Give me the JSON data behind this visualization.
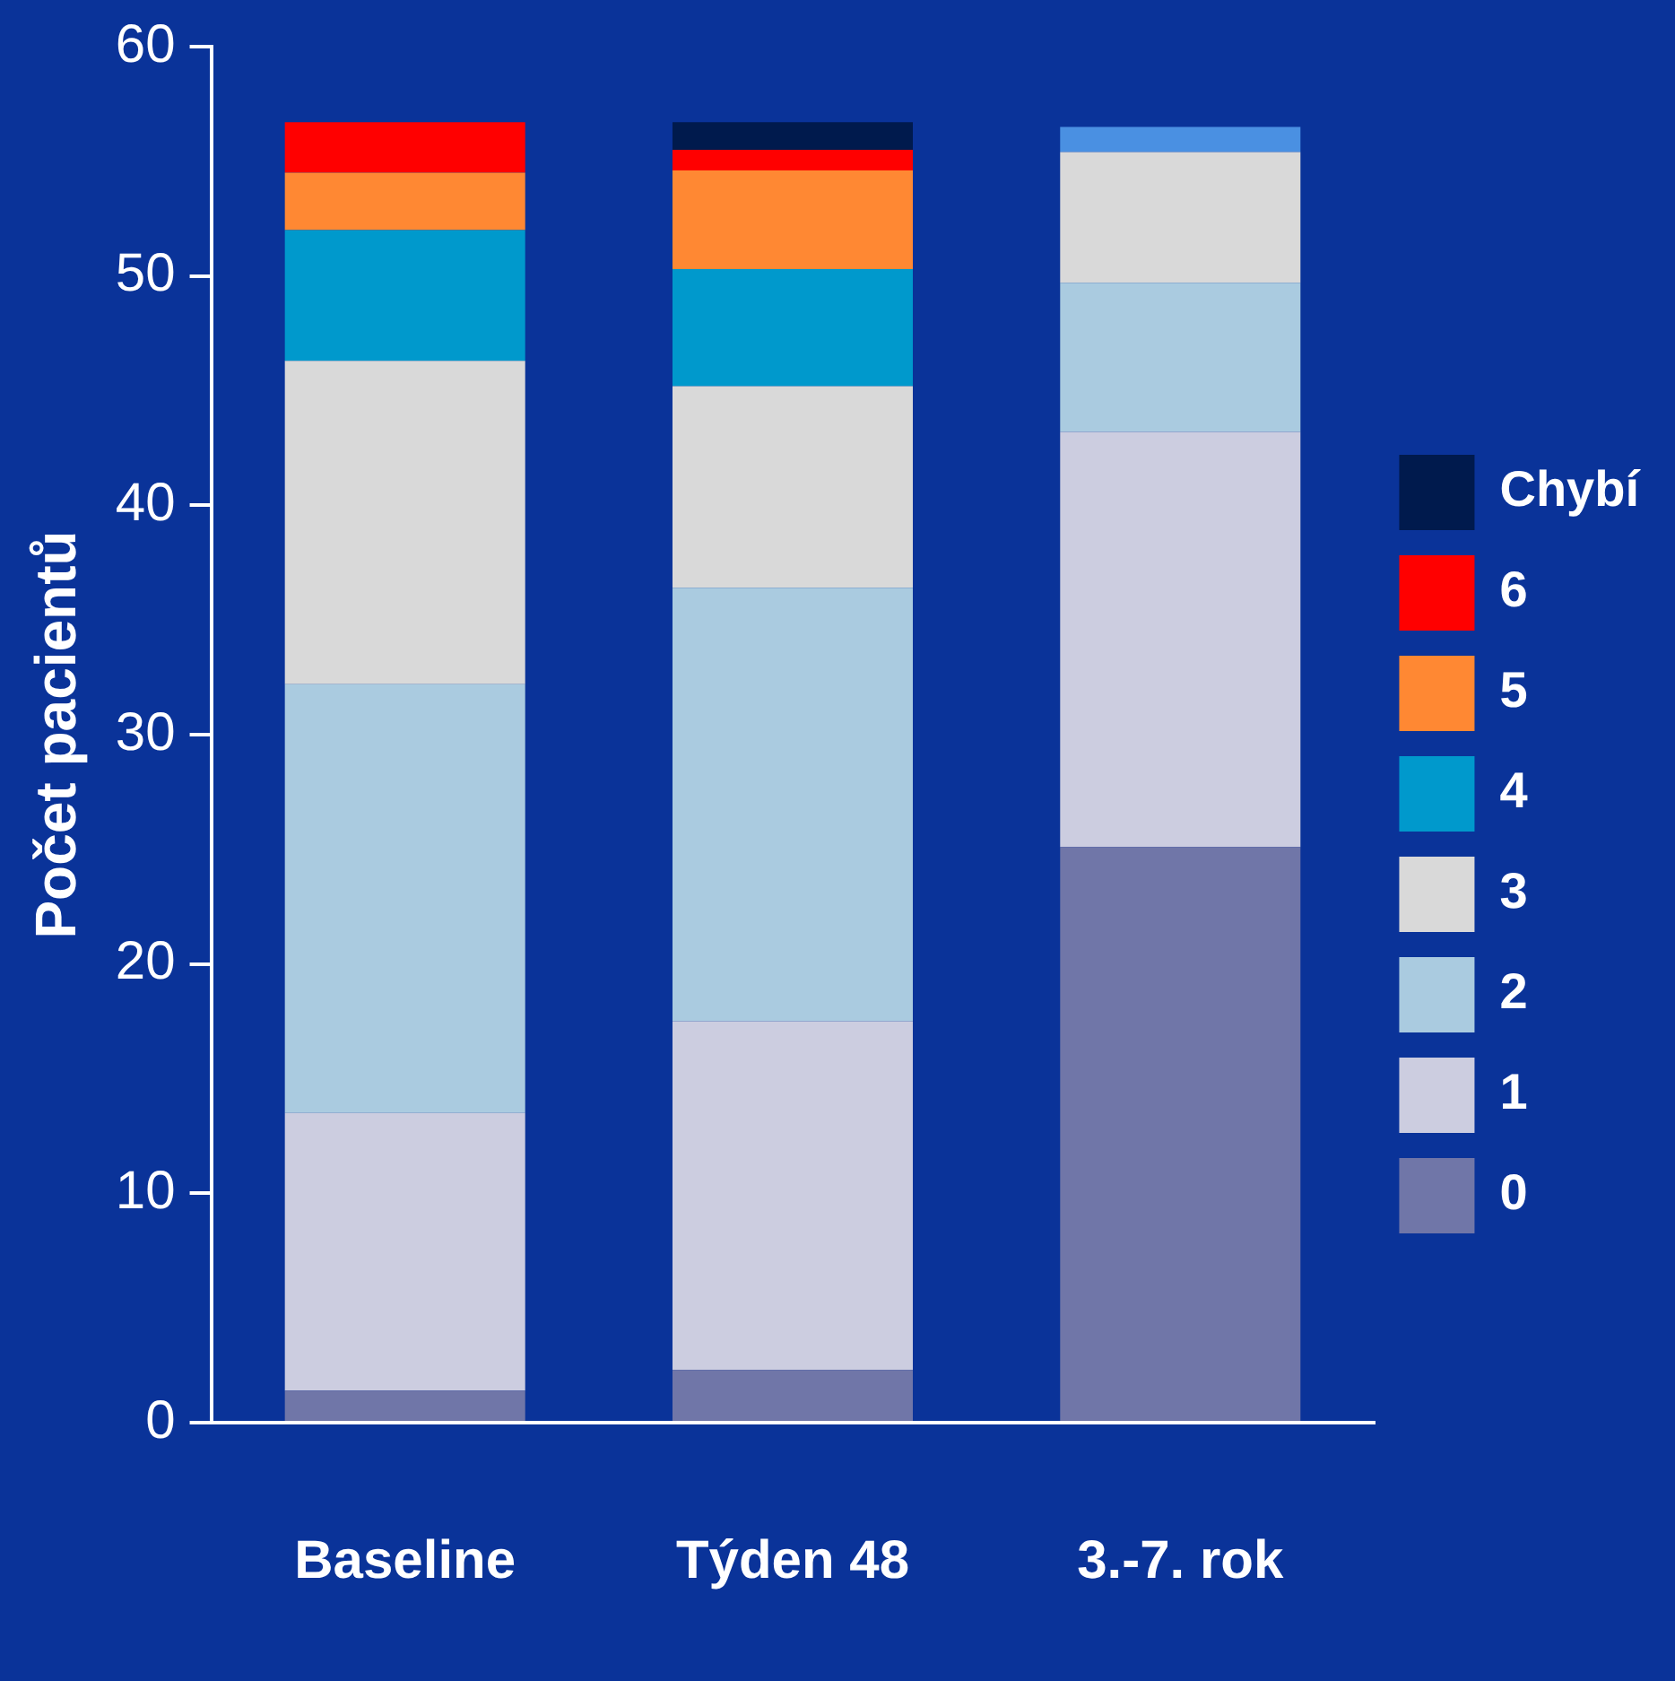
{
  "chart_data": {
    "type": "bar",
    "stacked": true,
    "ylabel": "Počet pacientů",
    "categories": [
      "Baseline",
      "Týden 48",
      "3.-7. rok"
    ],
    "ylim": [
      0,
      60
    ],
    "yticks": [
      0,
      10,
      20,
      30,
      40,
      50,
      60
    ],
    "grid": false,
    "legend": "right",
    "series": [
      {
        "name": "0",
        "color": "#7076a8",
        "values": [
          1.4,
          2.3,
          25.1
        ]
      },
      {
        "name": "1",
        "color": "#cccde0",
        "values": [
          12.1,
          15.2,
          18.1
        ]
      },
      {
        "name": "2",
        "color": "#aacbe0",
        "values": [
          18.7,
          18.9,
          6.5
        ]
      },
      {
        "name": "3",
        "color": "#d9d9d9",
        "values": [
          14.1,
          8.8,
          5.7
        ]
      },
      {
        "name": "4",
        "color": "#0099cc",
        "colors": [
          "#0099cc",
          "#0099cc",
          "#4a90e2"
        ],
        "values": [
          5.7,
          5.1,
          1.1
        ]
      },
      {
        "name": "5",
        "color": "#ff8833",
        "values": [
          2.5,
          4.3,
          null
        ]
      },
      {
        "name": "6",
        "color": "#ff0000",
        "values": [
          2.2,
          0.9,
          null
        ]
      },
      {
        "name": "Chybí",
        "color": "#001a4d",
        "values": [
          null,
          1.2,
          null
        ]
      }
    ]
  }
}
